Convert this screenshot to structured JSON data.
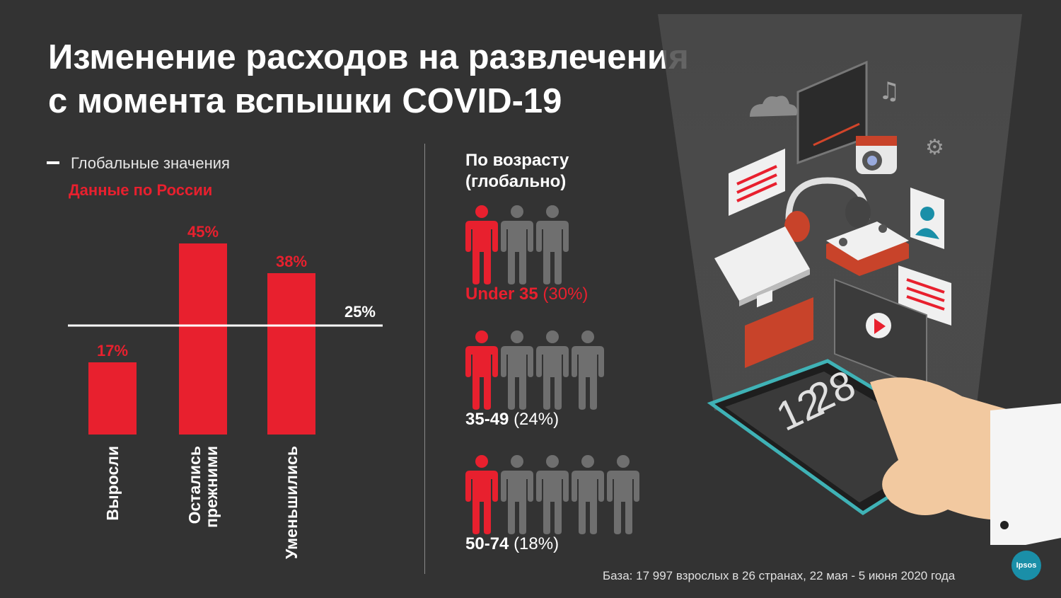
{
  "title": {
    "line1": "Изменение расходов на развлечения",
    "line2": "с момента вспышки COVID-19"
  },
  "legend": {
    "global_label": "Глобальные значения",
    "russia_label": "Данные по России"
  },
  "chart_data": {
    "type": "bar",
    "categories": [
      "Выросли",
      "Остались прежними",
      "Уменьшились"
    ],
    "category_lines": [
      [
        "Выросли"
      ],
      [
        "Остались",
        "прежними"
      ],
      [
        "Уменьшились"
      ]
    ],
    "values": [
      17,
      45,
      38
    ],
    "value_labels": [
      "17%",
      "45%",
      "38%"
    ],
    "series_name": "Данные по России",
    "reference_line": {
      "value": 25,
      "label": "25%",
      "name": "Глобальные значения"
    },
    "ylim": [
      0,
      50
    ],
    "title": "",
    "xlabel": "",
    "ylabel": "",
    "bar_color": "#e8202e",
    "line_color": "#ffffff"
  },
  "age_section": {
    "title_line1": "По возрасту",
    "title_line2": "(глобально)",
    "groups": [
      {
        "label": "Under 35",
        "value": "(30%)",
        "ratio": "1 из 3",
        "total_icons": 3,
        "highlighted_icons": 1,
        "label_color": "#e8202e"
      },
      {
        "label": "35-49",
        "value": "(24%)",
        "ratio": "1 из 4",
        "total_icons": 4,
        "highlighted_icons": 1,
        "label_color": "#ffffff"
      },
      {
        "label": "50-74",
        "value": "(18%)",
        "ratio": "1 из 5",
        "total_icons": 5,
        "highlighted_icons": 1,
        "label_color": "#ffffff"
      }
    ]
  },
  "phone_clock": {
    "hours": "12",
    "minutes": "28"
  },
  "footer": {
    "base": "База: 17 997 взрослых  в 26 странах, 22 мая - 5 июня 2020 года"
  },
  "logo": {
    "text": "Ipsos"
  },
  "colors": {
    "background": "#333333",
    "accent_red": "#e8202e",
    "person_gray": "#6f6f6f",
    "logo_teal": "#1a8fa8"
  }
}
